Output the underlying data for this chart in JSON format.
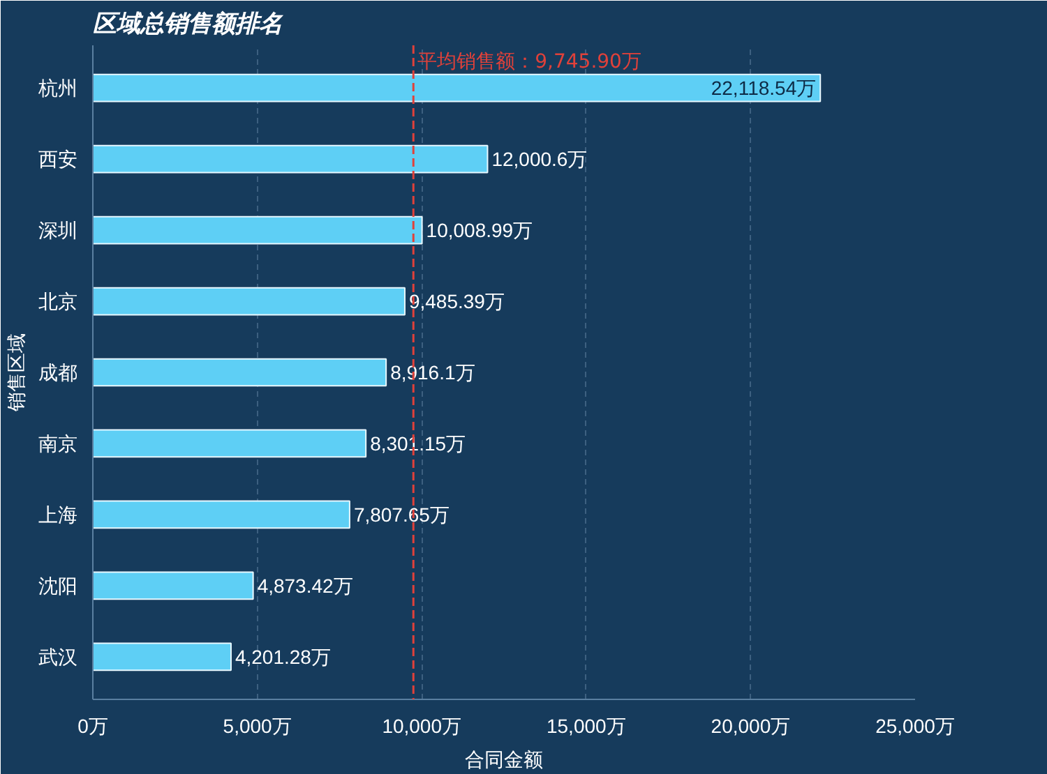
{
  "chart_data": {
    "type": "bar",
    "orientation": "horizontal",
    "title": "区域总销售额排名",
    "xlabel": "合同金额",
    "ylabel": "销售区域",
    "categories": [
      "杭州",
      "西安",
      "深圳",
      "北京",
      "成都",
      "南京",
      "上海",
      "沈阳",
      "武汉"
    ],
    "values": [
      22118.54,
      12000.6,
      10008.99,
      9485.39,
      8916.1,
      8301.15,
      7807.65,
      4873.42,
      4201.28
    ],
    "value_labels": [
      "22,118.54万",
      "12,000.6万",
      "10,008.99万",
      "9,485.39万",
      "8,916.1万",
      "8,301.15万",
      "7,807.65万",
      "4,873.42万",
      "4,201.28万"
    ],
    "color": "#5ecff5",
    "xlim": [
      0,
      25000
    ],
    "xticks": [
      {
        "value": 0,
        "label": "0万"
      },
      {
        "value": 5000,
        "label": "5,000万"
      },
      {
        "value": 10000,
        "label": "10,000万"
      },
      {
        "value": 15000,
        "label": "15,000万"
      },
      {
        "value": 20000,
        "label": "20,000万"
      },
      {
        "value": 25000,
        "label": "25,000万"
      }
    ],
    "ref_lines": [
      {
        "axis": "x",
        "value": 9745.9,
        "label": "平均销售额：9,745.90万",
        "color": "#e0413a",
        "line_style": "dashed"
      }
    ],
    "grid": "x"
  }
}
